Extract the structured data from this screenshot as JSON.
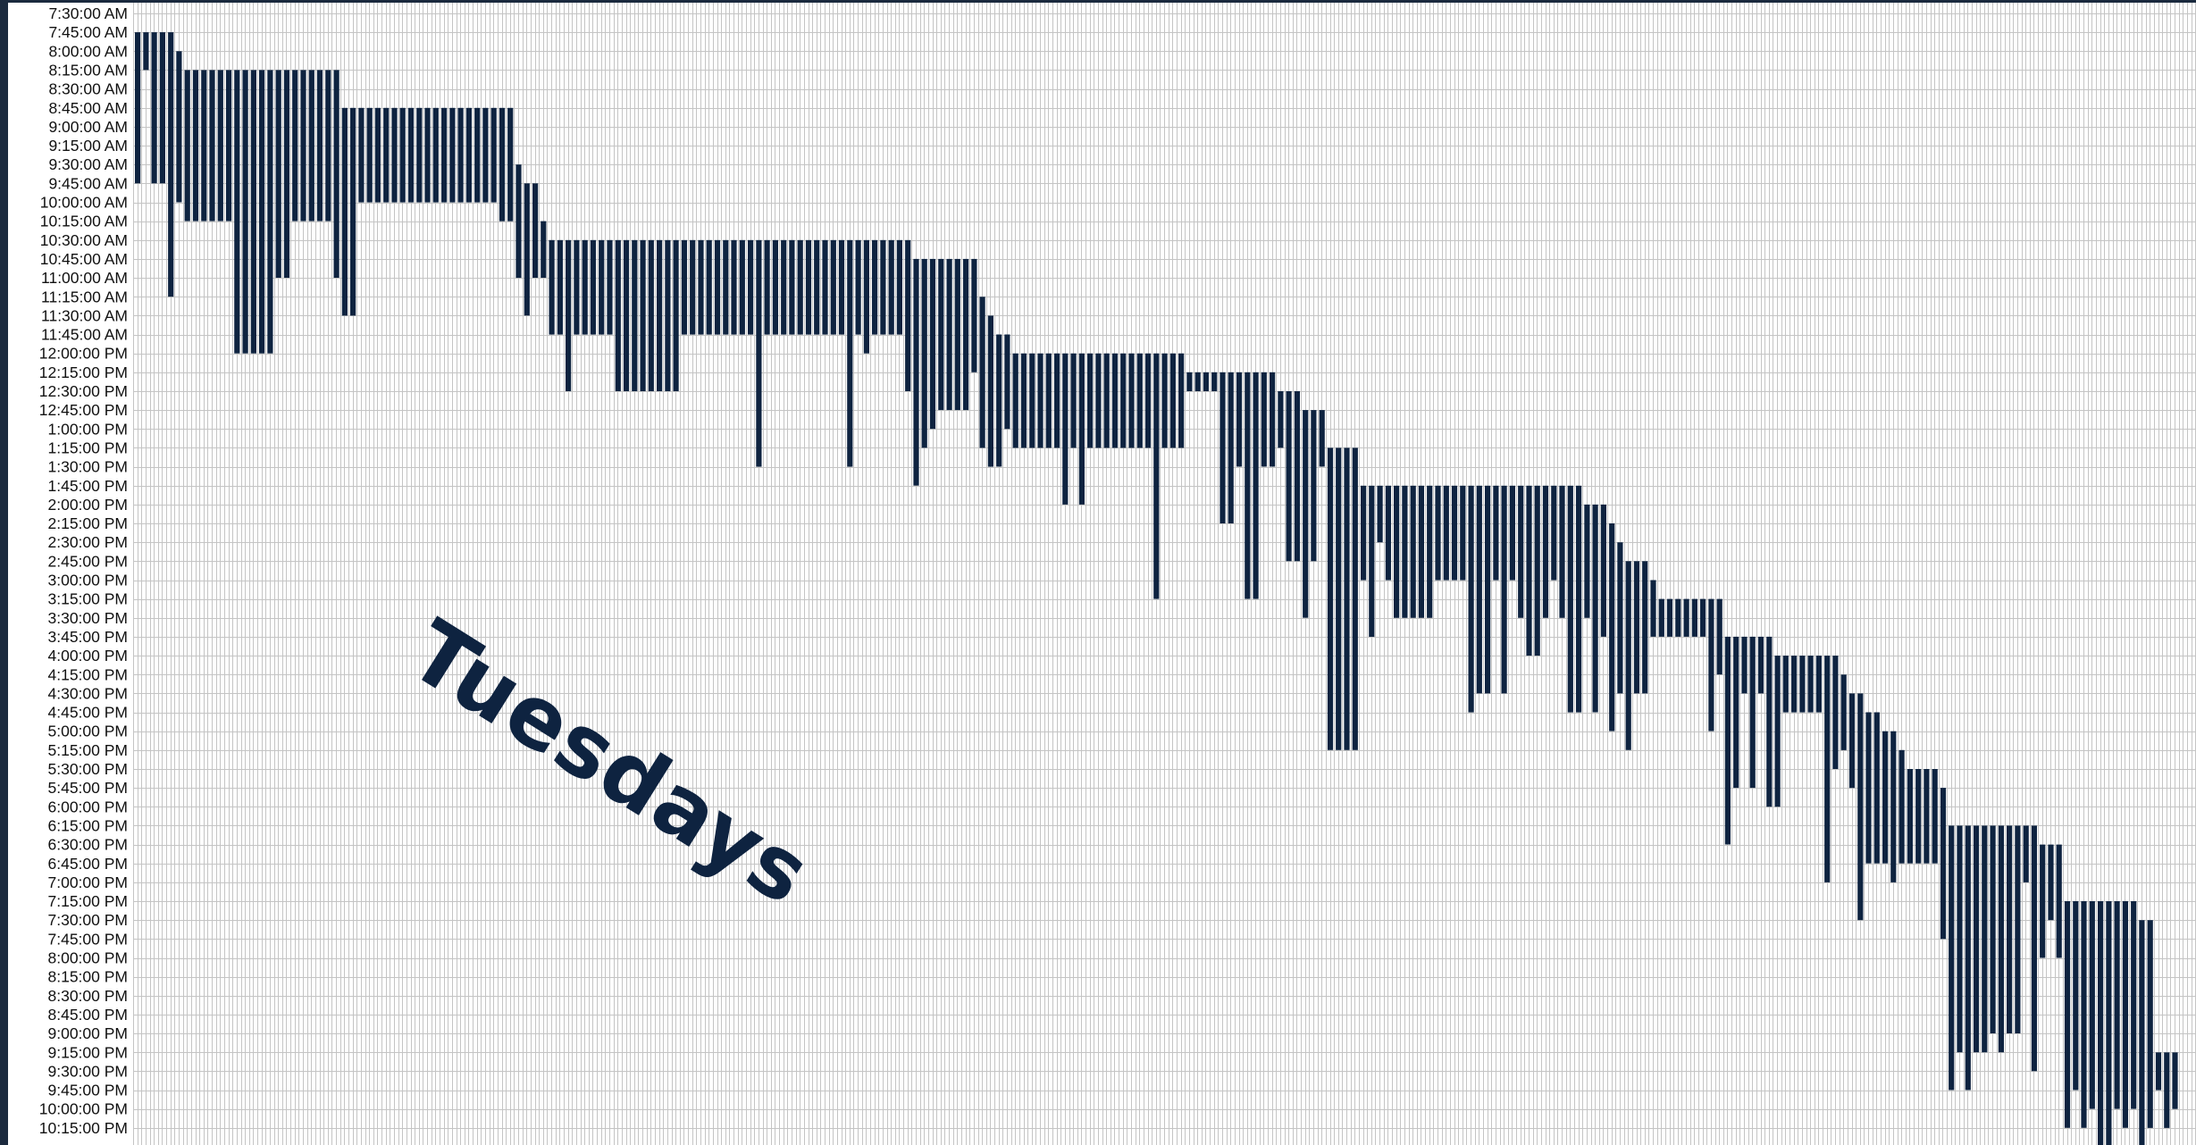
{
  "chart_data": {
    "type": "timeline",
    "title": "",
    "annotation": "Tuesdays",
    "ylabels": [
      "7:30:00 AM",
      "7:45:00 AM",
      "8:00:00 AM",
      "8:15:00 AM",
      "8:30:00 AM",
      "8:45:00 AM",
      "9:00:00 AM",
      "9:15:00 AM",
      "9:30:00 AM",
      "9:45:00 AM",
      "10:00:00 AM",
      "10:15:00 AM",
      "10:30:00 AM",
      "10:45:00 AM",
      "11:00:00 AM",
      "11:15:00 AM",
      "11:30:00 AM",
      "11:45:00 AM",
      "12:00:00 PM",
      "12:15:00 PM",
      "12:30:00 PM",
      "12:45:00 PM",
      "1:00:00 PM",
      "1:15:00 PM",
      "1:30:00 PM",
      "1:45:00 PM",
      "2:00:00 PM",
      "2:15:00 PM",
      "2:30:00 PM",
      "2:45:00 PM",
      "3:00:00 PM",
      "3:15:00 PM",
      "3:30:00 PM",
      "3:45:00 PM",
      "4:00:00 PM",
      "4:15:00 PM",
      "4:30:00 PM",
      "4:45:00 PM",
      "5:00:00 PM",
      "5:15:00 PM",
      "5:30:00 PM",
      "5:45:00 PM",
      "6:00:00 PM",
      "6:15:00 PM",
      "6:30:00 PM",
      "6:45:00 PM",
      "7:00:00 PM",
      "7:15:00 PM",
      "7:30:00 PM",
      "7:45:00 PM",
      "8:00:00 PM",
      "8:15:00 PM",
      "8:30:00 PM",
      "8:45:00 PM",
      "9:00:00 PM",
      "9:15:00 PM",
      "9:30:00 PM",
      "9:45:00 PM",
      "10:00:00 PM",
      "10:15:00 PM"
    ],
    "bar_color": "#0e2340",
    "grid_color": "#c4c4c4",
    "grid": true,
    "column_groups": [
      {
        "count": 1,
        "start": "7:45:00 AM",
        "end": "9:45:00 AM"
      },
      {
        "count": 1,
        "start": "7:45:00 AM",
        "end": "8:15:00 AM"
      },
      {
        "count": 2,
        "start": "7:45:00 AM",
        "end": "9:45:00 AM"
      },
      {
        "count": 1,
        "start": "7:45:00 AM",
        "end": "11:15:00 AM"
      },
      {
        "count": 1,
        "start": "8:00:00 AM",
        "end": "10:00:00 AM"
      },
      {
        "count": 1,
        "start": "8:15:00 AM",
        "end": "10:15:00 AM"
      },
      {
        "count": 5,
        "start": "8:15:00 AM",
        "end": "10:15:00 AM"
      },
      {
        "count": 5,
        "start": "8:15:00 AM",
        "end": "12:00:00 PM"
      },
      {
        "count": 2,
        "start": "8:15:00 AM",
        "end": "11:00:00 AM"
      },
      {
        "count": 5,
        "start": "8:15:00 AM",
        "end": "10:15:00 AM"
      },
      {
        "count": 1,
        "start": "8:15:00 AM",
        "end": "11:00:00 AM"
      },
      {
        "count": 2,
        "start": "8:45:00 AM",
        "end": "11:30:00 AM"
      },
      {
        "count": 17,
        "start": "8:45:00 AM",
        "end": "10:00:00 AM"
      },
      {
        "count": 2,
        "start": "8:45:00 AM",
        "end": "10:15:00 AM"
      },
      {
        "count": 1,
        "start": "9:30:00 AM",
        "end": "11:00:00 AM"
      },
      {
        "count": 1,
        "start": "9:45:00 AM",
        "end": "11:30:00 AM"
      },
      {
        "count": 1,
        "start": "9:45:00 AM",
        "end": "11:00:00 AM"
      },
      {
        "count": 1,
        "start": "10:15:00 AM",
        "end": "11:00:00 AM"
      },
      {
        "count": 2,
        "start": "10:30:00 AM",
        "end": "11:45:00 AM"
      },
      {
        "count": 1,
        "start": "10:30:00 AM",
        "end": "12:30:00 PM"
      },
      {
        "count": 5,
        "start": "10:30:00 AM",
        "end": "11:45:00 AM"
      },
      {
        "count": 8,
        "start": "10:30:00 AM",
        "end": "12:30:00 PM"
      },
      {
        "count": 9,
        "start": "10:30:00 AM",
        "end": "11:45:00 AM"
      },
      {
        "count": 1,
        "start": "10:30:00 AM",
        "end": "1:30:00 PM"
      },
      {
        "count": 10,
        "start": "10:30:00 AM",
        "end": "11:45:00 AM"
      },
      {
        "count": 1,
        "start": "10:30:00 AM",
        "end": "1:30:00 PM"
      },
      {
        "count": 1,
        "start": "10:30:00 AM",
        "end": "11:45:00 AM"
      },
      {
        "count": 1,
        "start": "10:30:00 AM",
        "end": "12:00:00 PM"
      },
      {
        "count": 4,
        "start": "10:30:00 AM",
        "end": "11:45:00 AM"
      },
      {
        "count": 1,
        "start": "10:30:00 AM",
        "end": "12:30:00 PM"
      },
      {
        "count": 1,
        "start": "10:45:00 AM",
        "end": "1:45:00 PM"
      },
      {
        "count": 1,
        "start": "10:45:00 AM",
        "end": "1:15:00 PM"
      },
      {
        "count": 1,
        "start": "10:45:00 AM",
        "end": "1:00:00 PM"
      },
      {
        "count": 4,
        "start": "10:45:00 AM",
        "end": "12:45:00 PM"
      },
      {
        "count": 1,
        "start": "10:45:00 AM",
        "end": "12:15:00 PM"
      },
      {
        "count": 1,
        "start": "11:15:00 AM",
        "end": "1:15:00 PM"
      },
      {
        "count": 1,
        "start": "11:30:00 AM",
        "end": "1:30:00 PM"
      },
      {
        "count": 1,
        "start": "11:45:00 AM",
        "end": "1:30:00 PM"
      },
      {
        "count": 1,
        "start": "11:45:00 AM",
        "end": "1:00:00 PM"
      },
      {
        "count": 6,
        "start": "12:00:00 PM",
        "end": "1:15:00 PM"
      },
      {
        "count": 1,
        "start": "12:00:00 PM",
        "end": "2:00:00 PM"
      },
      {
        "count": 1,
        "start": "12:00:00 PM",
        "end": "1:15:00 PM"
      },
      {
        "count": 1,
        "start": "12:00:00 PM",
        "end": "2:00:00 PM"
      },
      {
        "count": 8,
        "start": "12:00:00 PM",
        "end": "1:15:00 PM"
      },
      {
        "count": 1,
        "start": "12:00:00 PM",
        "end": "3:15:00 PM"
      },
      {
        "count": 3,
        "start": "12:00:00 PM",
        "end": "1:15:00 PM"
      },
      {
        "count": 4,
        "start": "12:15:00 PM",
        "end": "12:30:00 PM"
      },
      {
        "count": 2,
        "start": "12:15:00 PM",
        "end": "2:15:00 PM"
      },
      {
        "count": 1,
        "start": "12:15:00 PM",
        "end": "1:30:00 PM"
      },
      {
        "count": 2,
        "start": "12:15:00 PM",
        "end": "3:15:00 PM"
      },
      {
        "count": 2,
        "start": "12:15:00 PM",
        "end": "1:30:00 PM"
      },
      {
        "count": 1,
        "start": "12:30:00 PM",
        "end": "1:15:00 PM"
      },
      {
        "count": 2,
        "start": "12:30:00 PM",
        "end": "2:45:00 PM"
      },
      {
        "count": 1,
        "start": "12:45:00 PM",
        "end": "3:30:00 PM"
      },
      {
        "count": 1,
        "start": "12:45:00 PM",
        "end": "2:45:00 PM"
      },
      {
        "count": 1,
        "start": "12:45:00 PM",
        "end": "1:30:00 PM"
      },
      {
        "count": 4,
        "start": "1:15:00 PM",
        "end": "5:15:00 PM"
      },
      {
        "count": 1,
        "start": "1:45:00 PM",
        "end": "3:00:00 PM"
      },
      {
        "count": 1,
        "start": "1:45:00 PM",
        "end": "3:45:00 PM"
      },
      {
        "count": 1,
        "start": "1:45:00 PM",
        "end": "2:30:00 PM"
      },
      {
        "count": 1,
        "start": "1:45:00 PM",
        "end": "3:00:00 PM"
      },
      {
        "count": 5,
        "start": "1:45:00 PM",
        "end": "3:30:00 PM"
      },
      {
        "count": 4,
        "start": "1:45:00 PM",
        "end": "3:00:00 PM"
      },
      {
        "count": 1,
        "start": "1:45:00 PM",
        "end": "4:45:00 PM"
      },
      {
        "count": 2,
        "start": "1:45:00 PM",
        "end": "4:30:00 PM"
      },
      {
        "count": 1,
        "start": "1:45:00 PM",
        "end": "3:00:00 PM"
      },
      {
        "count": 1,
        "start": "1:45:00 PM",
        "end": "4:30:00 PM"
      },
      {
        "count": 1,
        "start": "1:45:00 PM",
        "end": "3:00:00 PM"
      },
      {
        "count": 1,
        "start": "1:45:00 PM",
        "end": "3:30:00 PM"
      },
      {
        "count": 2,
        "start": "1:45:00 PM",
        "end": "4:00:00 PM"
      },
      {
        "count": 1,
        "start": "1:45:00 PM",
        "end": "3:30:00 PM"
      },
      {
        "count": 1,
        "start": "1:45:00 PM",
        "end": "3:00:00 PM"
      },
      {
        "count": 1,
        "start": "1:45:00 PM",
        "end": "3:30:00 PM"
      },
      {
        "count": 2,
        "start": "1:45:00 PM",
        "end": "4:45:00 PM"
      },
      {
        "count": 1,
        "start": "2:00:00 PM",
        "end": "3:30:00 PM"
      },
      {
        "count": 1,
        "start": "2:00:00 PM",
        "end": "4:45:00 PM"
      },
      {
        "count": 1,
        "start": "2:00:00 PM",
        "end": "3:45:00 PM"
      },
      {
        "count": 1,
        "start": "2:15:00 PM",
        "end": "5:00:00 PM"
      },
      {
        "count": 1,
        "start": "2:30:00 PM",
        "end": "4:30:00 PM"
      },
      {
        "count": 1,
        "start": "2:45:00 PM",
        "end": "5:15:00 PM"
      },
      {
        "count": 2,
        "start": "2:45:00 PM",
        "end": "4:30:00 PM"
      },
      {
        "count": 1,
        "start": "3:00:00 PM",
        "end": "3:45:00 PM"
      },
      {
        "count": 6,
        "start": "3:15:00 PM",
        "end": "3:45:00 PM"
      },
      {
        "count": 1,
        "start": "3:15:00 PM",
        "end": "5:00:00 PM"
      },
      {
        "count": 1,
        "start": "3:15:00 PM",
        "end": "4:15:00 PM"
      },
      {
        "count": 1,
        "start": "3:45:00 PM",
        "end": "6:30:00 PM"
      },
      {
        "count": 1,
        "start": "3:45:00 PM",
        "end": "5:45:00 PM"
      },
      {
        "count": 1,
        "start": "3:45:00 PM",
        "end": "4:30:00 PM"
      },
      {
        "count": 1,
        "start": "3:45:00 PM",
        "end": "5:45:00 PM"
      },
      {
        "count": 1,
        "start": "3:45:00 PM",
        "end": "4:30:00 PM"
      },
      {
        "count": 1,
        "start": "3:45:00 PM",
        "end": "6:00:00 PM"
      },
      {
        "count": 1,
        "start": "4:00:00 PM",
        "end": "6:00:00 PM"
      },
      {
        "count": 1,
        "start": "4:00:00 PM",
        "end": "4:45:00 PM"
      },
      {
        "count": 4,
        "start": "4:00:00 PM",
        "end": "4:45:00 PM"
      },
      {
        "count": 1,
        "start": "4:00:00 PM",
        "end": "7:00:00 PM"
      },
      {
        "count": 1,
        "start": "4:00:00 PM",
        "end": "5:30:00 PM"
      },
      {
        "count": 1,
        "start": "4:15:00 PM",
        "end": "5:15:00 PM"
      },
      {
        "count": 1,
        "start": "4:30:00 PM",
        "end": "5:45:00 PM"
      },
      {
        "count": 1,
        "start": "4:30:00 PM",
        "end": "7:30:00 PM"
      },
      {
        "count": 1,
        "start": "4:45:00 PM",
        "end": "6:45:00 PM"
      },
      {
        "count": 1,
        "start": "4:45:00 PM",
        "end": "6:45:00 PM"
      },
      {
        "count": 1,
        "start": "5:00:00 PM",
        "end": "6:45:00 PM"
      },
      {
        "count": 1,
        "start": "5:00:00 PM",
        "end": "7:00:00 PM"
      },
      {
        "count": 1,
        "start": "5:15:00 PM",
        "end": "6:45:00 PM"
      },
      {
        "count": 4,
        "start": "5:30:00 PM",
        "end": "6:45:00 PM"
      },
      {
        "count": 1,
        "start": "5:45:00 PM",
        "end": "7:45:00 PM"
      },
      {
        "count": 1,
        "start": "6:15:00 PM",
        "end": "9:45:00 PM"
      },
      {
        "count": 1,
        "start": "6:15:00 PM",
        "end": "9:15:00 PM"
      },
      {
        "count": 1,
        "start": "6:15:00 PM",
        "end": "9:45:00 PM"
      },
      {
        "count": 2,
        "start": "6:15:00 PM",
        "end": "9:15:00 PM"
      },
      {
        "count": 1,
        "start": "6:15:00 PM",
        "end": "9:00:00 PM"
      },
      {
        "count": 1,
        "start": "6:15:00 PM",
        "end": "9:15:00 PM"
      },
      {
        "count": 2,
        "start": "6:15:00 PM",
        "end": "9:00:00 PM"
      },
      {
        "count": 1,
        "start": "6:15:00 PM",
        "end": "7:00:00 PM"
      },
      {
        "count": 1,
        "start": "6:15:00 PM",
        "end": "9:30:00 PM"
      },
      {
        "count": 1,
        "start": "6:30:00 PM",
        "end": "8:00:00 PM"
      },
      {
        "count": 1,
        "start": "6:30:00 PM",
        "end": "7:30:00 PM"
      },
      {
        "count": 1,
        "start": "6:30:00 PM",
        "end": "8:00:00 PM"
      },
      {
        "count": 1,
        "start": "7:15:00 PM",
        "end": "10:15:00 PM"
      },
      {
        "count": 1,
        "start": "7:15:00 PM",
        "end": "9:45:00 PM"
      },
      {
        "count": 1,
        "start": "7:15:00 PM",
        "end": "10:15:00 PM"
      },
      {
        "count": 1,
        "start": "7:15:00 PM",
        "end": "10:00:00 PM"
      },
      {
        "count": 2,
        "start": "7:15:00 PM",
        "end": "10:30:00 PM"
      },
      {
        "count": 1,
        "start": "7:15:00 PM",
        "end": "10:00:00 PM"
      },
      {
        "count": 1,
        "start": "7:15:00 PM",
        "end": "10:15:00 PM"
      },
      {
        "count": 1,
        "start": "7:15:00 PM",
        "end": "10:00:00 PM"
      },
      {
        "count": 1,
        "start": "7:30:00 PM",
        "end": "10:30:00 PM"
      },
      {
        "count": 1,
        "start": "7:30:00 PM",
        "end": "10:15:00 PM"
      },
      {
        "count": 1,
        "start": "9:15:00 PM",
        "end": "9:45:00 PM"
      },
      {
        "count": 1,
        "start": "9:15:00 PM",
        "end": "10:15:00 PM"
      },
      {
        "count": 1,
        "start": "9:15:00 PM",
        "end": "10:00:00 PM"
      }
    ]
  }
}
